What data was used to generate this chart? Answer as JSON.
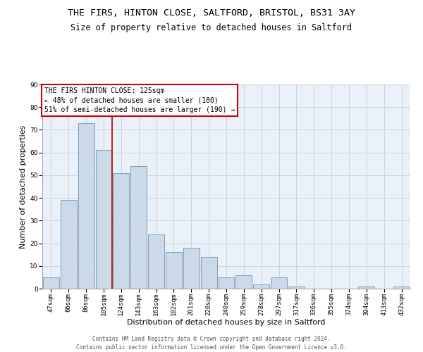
{
  "title1": "THE FIRS, HINTON CLOSE, SALTFORD, BRISTOL, BS31 3AY",
  "title2": "Size of property relative to detached houses in Saltford",
  "xlabel": "Distribution of detached houses by size in Saltford",
  "ylabel": "Number of detached properties",
  "bar_values": [
    5,
    39,
    73,
    61,
    51,
    54,
    24,
    16,
    18,
    14,
    5,
    6,
    2,
    5,
    1,
    0,
    0,
    0,
    1,
    0,
    1
  ],
  "x_tick_labels": [
    "47sqm",
    "66sqm",
    "86sqm",
    "105sqm",
    "124sqm",
    "143sqm",
    "163sqm",
    "182sqm",
    "201sqm",
    "220sqm",
    "240sqm",
    "259sqm",
    "278sqm",
    "297sqm",
    "317sqm",
    "336sqm",
    "355sqm",
    "374sqm",
    "394sqm",
    "413sqm",
    "432sqm"
  ],
  "bar_color": "#ccd9e8",
  "bar_edge_color": "#7aa0c0",
  "vline_x": 3.5,
  "vline_color": "#aa0000",
  "annotation_text": "THE FIRS HINTON CLOSE: 125sqm\n← 48% of detached houses are smaller (180)\n51% of semi-detached houses are larger (190) →",
  "annotation_box_color": "white",
  "annotation_box_edge_color": "#cc0000",
  "ylim": [
    0,
    90
  ],
  "yticks": [
    0,
    10,
    20,
    30,
    40,
    50,
    60,
    70,
    80,
    90
  ],
  "grid_color": "#c8d4e4",
  "bg_color": "#eaf0f8",
  "footer_text": "Contains HM Land Registry data © Crown copyright and database right 2024.\nContains public sector information licensed under the Open Government Licence v3.0.",
  "title1_fontsize": 9.5,
  "title2_fontsize": 8.5,
  "xlabel_fontsize": 8,
  "ylabel_fontsize": 8,
  "tick_fontsize": 6.5,
  "annotation_fontsize": 7,
  "footer_fontsize": 5.5
}
